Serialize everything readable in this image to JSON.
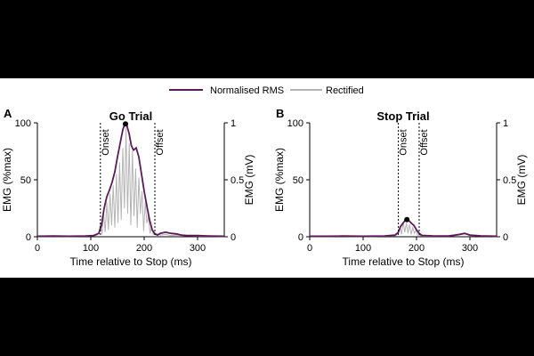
{
  "legend": {
    "rms_label": "Normalised RMS",
    "rect_label": "Rectified",
    "rms_color": "#5b1a5a",
    "rect_color": "#b4b4b4"
  },
  "chart_data": [
    {
      "type": "line",
      "panel_letter": "A",
      "title": "Go Trial",
      "xlabel": "Time relative to Stop (ms)",
      "ylabel_left": "EMG (%max)",
      "ylabel_right": "EMG (mV)",
      "xlim": [
        0,
        350
      ],
      "ylim_left": [
        0,
        100
      ],
      "ylim_right": [
        0,
        1
      ],
      "xticks": [
        0,
        100,
        200,
        300
      ],
      "yticks_left": [
        0,
        50,
        100
      ],
      "yticks_right": [
        0,
        0.5,
        1
      ],
      "markers": [
        {
          "label": "Onset",
          "x": 118
        },
        {
          "label": "Offset",
          "x": 220
        }
      ],
      "peak": {
        "x": 165,
        "y": 99
      },
      "series": [
        {
          "name": "Normalised RMS",
          "x": [
            0,
            30,
            60,
            90,
            105,
            115,
            120,
            125,
            130,
            135,
            140,
            145,
            150,
            155,
            160,
            163,
            165,
            168,
            172,
            176,
            180,
            185,
            190,
            195,
            200,
            205,
            210,
            215,
            220,
            225,
            230,
            240,
            250,
            260,
            270,
            280,
            300,
            320,
            350
          ],
          "y": [
            0.5,
            0.6,
            0.5,
            0.7,
            1,
            3,
            10,
            25,
            35,
            41,
            48,
            57,
            70,
            82,
            94,
            98,
            99,
            97,
            90,
            80,
            76,
            78,
            70,
            55,
            40,
            27,
            15,
            6,
            2.5,
            1.5,
            3,
            4,
            3,
            2.5,
            1.5,
            1,
            1,
            0.7,
            0.5
          ]
        },
        {
          "name": "Rectified",
          "x": [
            0,
            30,
            60,
            90,
            110,
            115,
            118,
            121,
            124,
            127,
            130,
            133,
            136,
            139,
            142,
            145,
            148,
            151,
            154,
            157,
            160,
            163,
            166,
            169,
            172,
            175,
            178,
            181,
            184,
            187,
            190,
            193,
            196,
            199,
            202,
            205,
            208,
            211,
            214,
            217,
            220,
            230,
            240,
            250,
            260,
            270,
            300,
            350
          ],
          "y": [
            0.3,
            0.4,
            0.3,
            0.5,
            1.2,
            3,
            12,
            2,
            20,
            4,
            30,
            6,
            38,
            10,
            45,
            8,
            55,
            12,
            65,
            15,
            78,
            25,
            96,
            20,
            82,
            10,
            75,
            18,
            60,
            8,
            52,
            20,
            40,
            5,
            30,
            12,
            18,
            3,
            9,
            2,
            3,
            1.5,
            2,
            1,
            1.5,
            1,
            0.6,
            0.3
          ]
        }
      ]
    },
    {
      "type": "line",
      "panel_letter": "B",
      "title": "Stop Trial",
      "xlabel": "Time relative to Stop (ms)",
      "ylabel_left": "EMG (%max)",
      "ylabel_right": "EMG (mV)",
      "xlim": [
        0,
        350
      ],
      "ylim_left": [
        0,
        100
      ],
      "ylim_right": [
        0,
        1
      ],
      "xticks": [
        0,
        100,
        200,
        300
      ],
      "yticks_left": [
        0,
        50,
        100
      ],
      "yticks_right": [
        0,
        0.5,
        1
      ],
      "markers": [
        {
          "label": "Onset",
          "x": 166
        },
        {
          "label": "Offset",
          "x": 205
        }
      ],
      "peak": {
        "x": 182,
        "y": 15
      },
      "series": [
        {
          "name": "Normalised RMS",
          "x": [
            0,
            30,
            60,
            100,
            140,
            160,
            166,
            170,
            175,
            178,
            182,
            186,
            190,
            195,
            200,
            205,
            210,
            230,
            260,
            280,
            290,
            300,
            320,
            350
          ],
          "y": [
            0.5,
            0.5,
            0.6,
            0.5,
            0.7,
            1.5,
            4,
            9,
            12,
            14,
            15,
            14,
            12,
            10,
            6,
            3,
            1.2,
            0.8,
            0.6,
            2,
            3,
            1.5,
            0.8,
            0.5
          ]
        },
        {
          "name": "Rectified",
          "x": [
            0,
            60,
            120,
            160,
            166,
            169,
            172,
            175,
            178,
            181,
            184,
            187,
            190,
            193,
            196,
            199,
            202,
            205,
            210,
            240,
            270,
            280,
            290,
            300,
            350
          ],
          "y": [
            0.3,
            0.4,
            0.3,
            0.8,
            3,
            9,
            2,
            13,
            4,
            12,
            3,
            11,
            2,
            8,
            3,
            6,
            1.5,
            1,
            0.6,
            0.5,
            0.8,
            1.5,
            2.5,
            1,
            0.3
          ]
        }
      ]
    }
  ]
}
